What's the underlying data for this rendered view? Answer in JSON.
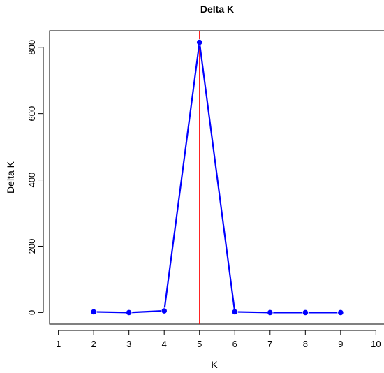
{
  "chart_data": {
    "type": "line",
    "title": "Delta K",
    "xlabel": "K",
    "ylabel": "Delta K",
    "xlim": [
      0.75,
      10.25
    ],
    "ylim": [
      -35,
      850
    ],
    "x_ticks": [
      1,
      2,
      3,
      4,
      5,
      6,
      7,
      8,
      9,
      10
    ],
    "y_ticks": [
      0,
      200,
      400,
      600,
      800
    ],
    "series": [
      {
        "x": [
          2,
          3,
          4,
          5,
          6,
          7,
          8,
          9
        ],
        "values": [
          2,
          0,
          5,
          815,
          2,
          0,
          0,
          0
        ],
        "color": "#0000ff"
      }
    ],
    "vline": {
      "x": 5,
      "color": "#ff0000"
    },
    "grid": false,
    "legend": "none"
  }
}
